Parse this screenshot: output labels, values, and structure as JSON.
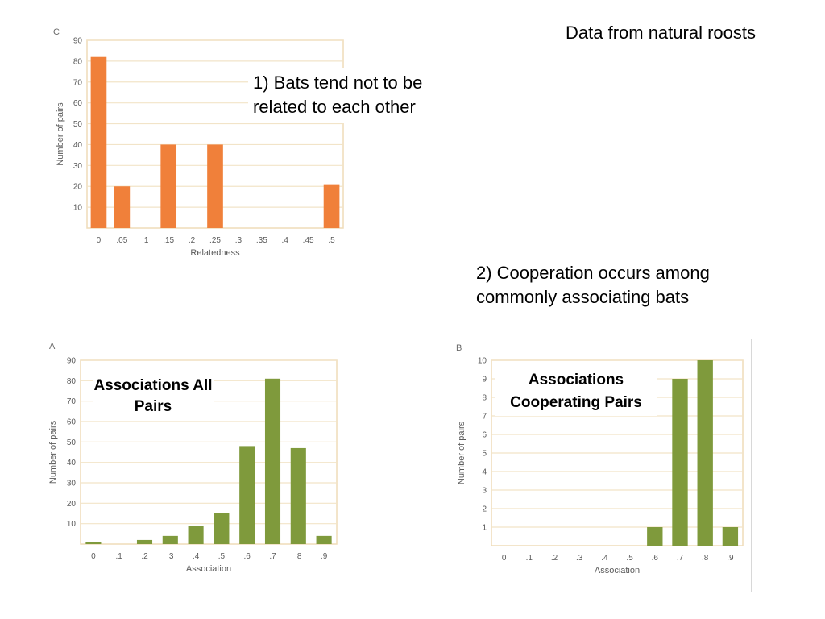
{
  "header": {
    "text": "Data from natural roosts"
  },
  "notes": {
    "note_1": "1) Bats tend not to be related to each other",
    "note_2": "2) Cooperation occurs among commonly associating bats"
  },
  "colors": {
    "orange": "#f0803a",
    "green": "#7f9a3c",
    "grid": "#f2e4c8",
    "frame": "#efdcb8"
  },
  "chart_data": [
    {
      "panel": "C",
      "type": "bar",
      "color": "#f0803a",
      "categories": [
        "0",
        ".05",
        ".1",
        ".15",
        ".2",
        ".25",
        ".3",
        ".35",
        ".4",
        ".45",
        ".5"
      ],
      "values": [
        82,
        20,
        0,
        40,
        0,
        40,
        0,
        0,
        0,
        0,
        21
      ],
      "xlabel": "Relatedness",
      "ylabel": "Number of pairs",
      "ylim": [
        0,
        90
      ],
      "yticks": [
        10,
        20,
        30,
        40,
        50,
        60,
        70,
        80,
        90
      ],
      "grid": true
    },
    {
      "panel": "A",
      "type": "bar",
      "color": "#7f9a3c",
      "label": "Associations All Pairs",
      "categories": [
        "0",
        ".1",
        ".2",
        ".3",
        ".4",
        ".5",
        ".6",
        ".7",
        ".8",
        ".9"
      ],
      "values": [
        1,
        0,
        2,
        4,
        9,
        15,
        48,
        81,
        47,
        4
      ],
      "xlabel": "Association",
      "ylabel": "Number of pairs",
      "ylim": [
        0,
        90
      ],
      "yticks": [
        10,
        20,
        30,
        40,
        50,
        60,
        70,
        80,
        90
      ],
      "grid": true
    },
    {
      "panel": "B",
      "type": "bar",
      "color": "#7f9a3c",
      "label": "Associations Cooperating Pairs",
      "categories": [
        "0",
        ".1",
        ".2",
        ".3",
        ".4",
        ".5",
        ".6",
        ".7",
        ".8",
        ".9"
      ],
      "values": [
        0,
        0,
        0,
        0,
        0,
        0,
        1,
        9,
        10,
        1
      ],
      "xlabel": "Association",
      "ylabel": "Number of pairs",
      "ylim": [
        0,
        10
      ],
      "yticks": [
        1,
        2,
        3,
        4,
        5,
        6,
        7,
        8,
        9,
        10
      ],
      "grid": true
    }
  ]
}
